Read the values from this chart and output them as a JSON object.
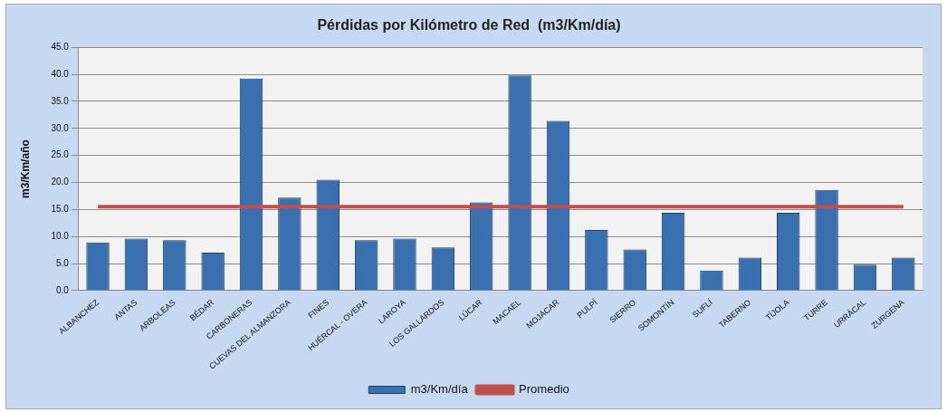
{
  "chart_data": {
    "type": "bar",
    "title": "Pérdidas por Kilómetro de Red  (m3/Km/día)",
    "ylabel": "m3/Km/año",
    "categories": [
      "ALBANCHEZ",
      "ANTAS",
      "ARBOLEAS",
      "BÉDAR",
      "CARBONERAS",
      "CUEVAS DEL ALMANZORA",
      "FINES",
      "HUÉRCAL - OVERA",
      "LAROYA",
      "LOS GALLARDOS",
      "LÚCAR",
      "MACAEL",
      "MOJÁCAR",
      "PULPÍ",
      "SIERRO",
      "SOMONTÍN",
      "SUFLÍ",
      "TABERNO",
      "TÍJOLA",
      "TURRE",
      "URRÁCAL",
      "ZURGENA"
    ],
    "series": [
      {
        "name": "m3/Km/día",
        "color": "#3a6fb0",
        "values": [
          8.9,
          9.6,
          9.3,
          7.0,
          39.2,
          17.2,
          20.5,
          9.3,
          9.6,
          8.0,
          16.3,
          39.8,
          31.4,
          11.2,
          7.6,
          14.4,
          3.7,
          6.1,
          14.4,
          18.6,
          4.8,
          6.1
        ]
      },
      {
        "name": "Promedio",
        "type": "line",
        "color": "#c0504d",
        "values": [
          15.5,
          15.5,
          15.5,
          15.5,
          15.5,
          15.5,
          15.5,
          15.5,
          15.5,
          15.5,
          15.5,
          15.5,
          15.5,
          15.5,
          15.5,
          15.5,
          15.5,
          15.5,
          15.5,
          15.5,
          15.5,
          15.5
        ]
      }
    ],
    "ylim": [
      0,
      45
    ],
    "yticks": [
      {
        "value": 0,
        "label": "0.0"
      },
      {
        "value": 5,
        "label": "5.0"
      },
      {
        "value": 10,
        "label": "10.0"
      },
      {
        "value": 15,
        "label": "15.0"
      },
      {
        "value": 20,
        "label": "20.0"
      },
      {
        "value": 25,
        "label": "25.0"
      },
      {
        "value": 30,
        "label": "30.0"
      },
      {
        "value": 35,
        "label": "35.0"
      },
      {
        "value": 40,
        "label": "40.0"
      },
      {
        "value": 45,
        "label": "45.0"
      }
    ],
    "grid": "y",
    "legend": "bottom",
    "marker": "none"
  }
}
